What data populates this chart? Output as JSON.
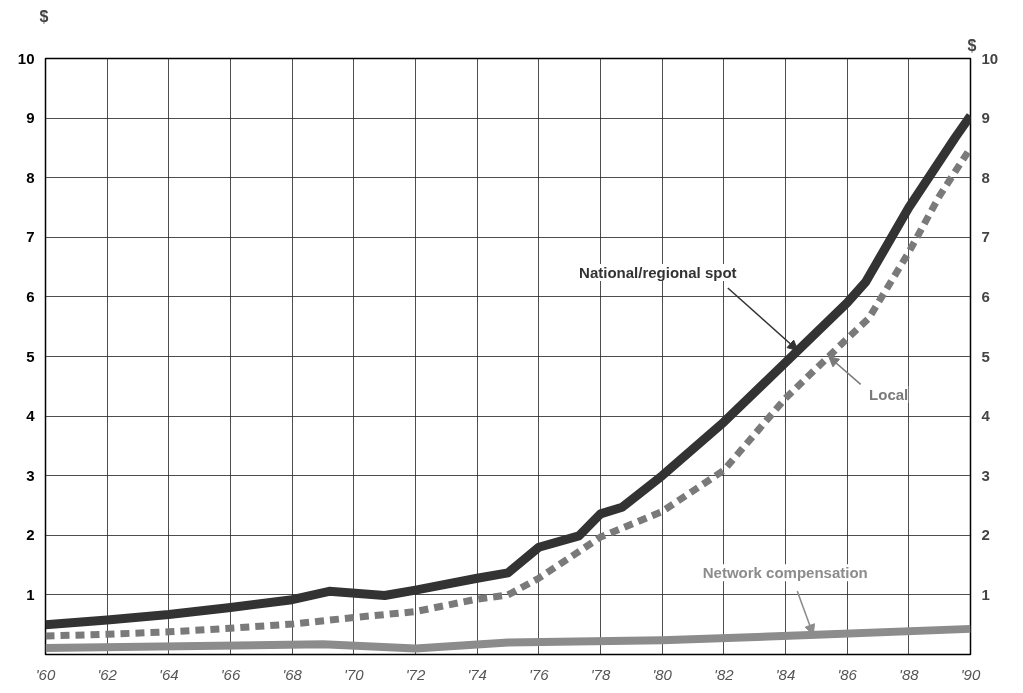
{
  "chart_data": {
    "type": "line",
    "ylabel": "$",
    "y2label": "$",
    "xlim": [
      1960,
      1990
    ],
    "ylim": [
      0,
      10
    ],
    "y2lim": [
      0,
      10
    ],
    "xticks": [
      {
        "value": 1960,
        "label": "'60"
      },
      {
        "value": 1962,
        "label": "'62"
      },
      {
        "value": 1964,
        "label": "'64"
      },
      {
        "value": 1966,
        "label": "'66"
      },
      {
        "value": 1968,
        "label": "'68"
      },
      {
        "value": 1970,
        "label": "'70"
      },
      {
        "value": 1972,
        "label": "'72"
      },
      {
        "value": 1974,
        "label": "'74"
      },
      {
        "value": 1976,
        "label": "'76"
      },
      {
        "value": 1978,
        "label": "'78"
      },
      {
        "value": 1980,
        "label": "'80"
      },
      {
        "value": 1982,
        "label": "'82"
      },
      {
        "value": 1984,
        "label": "'84"
      },
      {
        "value": 1986,
        "label": "'86"
      },
      {
        "value": 1988,
        "label": "'88"
      },
      {
        "value": 1990,
        "label": "'90"
      }
    ],
    "yticks": [
      1,
      2,
      3,
      4,
      5,
      6,
      7,
      8,
      9,
      10
    ],
    "y2ticks": [
      1,
      2,
      3,
      4,
      5,
      6,
      7,
      8,
      9,
      10
    ],
    "grid": true,
    "series": [
      {
        "color": "#333333",
        "line_style": "solid",
        "x": [
          1960,
          1962,
          1964,
          1966,
          1968,
          1969.2,
          1971,
          1972,
          1974,
          1975,
          1976,
          1977.3,
          1978,
          1978.7,
          1980,
          1982,
          1984,
          1986,
          1986.6,
          1988,
          1989.5,
          1990
        ],
        "values": [
          0.5,
          0.58,
          0.67,
          0.79,
          0.92,
          1.06,
          0.99,
          1.08,
          1.28,
          1.37,
          1.8,
          1.99,
          2.36,
          2.47,
          3.0,
          3.9,
          4.9,
          5.9,
          6.25,
          7.5,
          8.67,
          9.04
        ]
      },
      {
        "color": "#7a7a7a",
        "line_style": "dashed",
        "x": [
          1960,
          1962,
          1964,
          1966,
          1968,
          1970,
          1972,
          1974,
          1975,
          1976,
          1978,
          1980,
          1982,
          1984,
          1986,
          1986.7,
          1988,
          1989,
          1990
        ],
        "values": [
          0.31,
          0.34,
          0.38,
          0.44,
          0.51,
          0.62,
          0.72,
          0.93,
          1.0,
          1.28,
          1.97,
          2.4,
          3.09,
          4.3,
          5.3,
          5.64,
          6.75,
          7.7,
          8.5
        ]
      },
      {
        "color": "#8c8c8c",
        "line_style": "solid",
        "x": [
          1960,
          1969,
          1972,
          1975,
          1980,
          1985,
          1990
        ],
        "values": [
          0.11,
          0.17,
          0.1,
          0.2,
          0.24,
          0.33,
          0.43
        ]
      }
    ],
    "annotations": [
      {
        "text": "National/regional spot",
        "x": 1984.4,
        "y": 5.1
      },
      {
        "text": "Local",
        "x": 1985.4,
        "y": 5.0
      },
      {
        "text": "Network compensation",
        "x": 1984.9,
        "y": 0.33
      }
    ]
  }
}
